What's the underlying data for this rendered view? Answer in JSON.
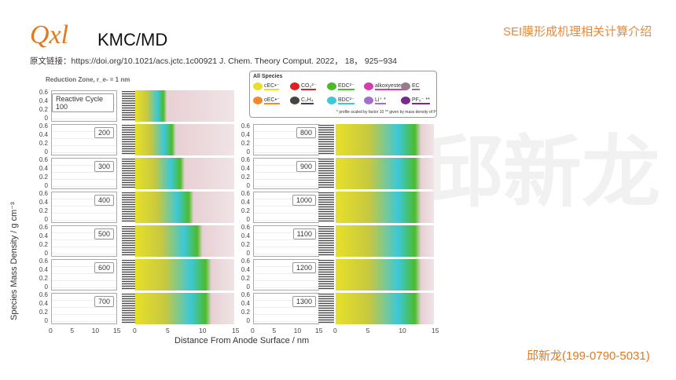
{
  "header": {
    "logo": "Qxl",
    "title": "KMC/MD",
    "subtitle": "SEI膜形成机理相关计算介绍",
    "reference": "原文链接：https://doi.org/10.1021/acs.jctc.1c00921    J. Chem. Theory Comput. 2022， 18， 925−934"
  },
  "footer": "邱新龙(199-0790-5031)",
  "watermark": "邱新龙",
  "figure": {
    "reduction_zone": "Reduction Zone, r_e- = 1 nm",
    "ylabel": "Species Mass Density / g cm⁻³",
    "xlabel": "Distance From Anode Surface / nm",
    "yticks": [
      "0.6",
      "0.4",
      "0.2",
      "0"
    ],
    "xticks": [
      "0",
      "5",
      "10",
      "15"
    ],
    "left_cycles": [
      "Reactive Cycle 100",
      "200",
      "300",
      "400",
      "500",
      "600",
      "700"
    ],
    "right_cycles": [
      "800",
      "900",
      "1000",
      "1100",
      "1200",
      "1300"
    ],
    "legend": {
      "title": "All Species",
      "items": [
        {
          "label": "cEC•⁻",
          "color": "#e6e02a"
        },
        {
          "label": "CO₃²⁻",
          "color": "#e02020"
        },
        {
          "label": "EDC²⁻",
          "color": "#4cbb2a"
        },
        {
          "label": "alkoxyester²⁻",
          "color": "#d63cb0"
        },
        {
          "label": "EC",
          "color": "#9a7a8a"
        },
        {
          "label": "oEC•⁻",
          "color": "#f08a2a"
        },
        {
          "label": "C₂H₄",
          "color": "#444444"
        },
        {
          "label": "BDC²⁻",
          "color": "#3cc8d8"
        },
        {
          "label": "Li⁺ *",
          "color": "#a070c8"
        },
        {
          "label": "PF₆⁻ **",
          "color": "#7a2a8a"
        }
      ],
      "note1": "* profile scaled by factor 10",
      "note2": "** given by mass density of P"
    }
  }
}
